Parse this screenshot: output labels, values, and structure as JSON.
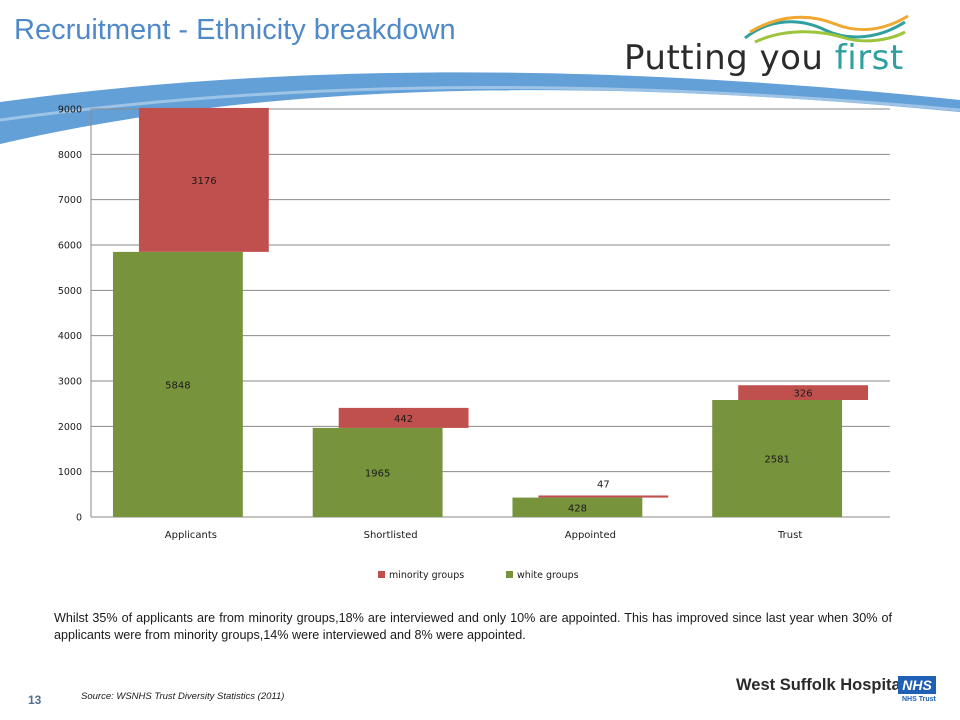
{
  "slide": {
    "title": "Recruitment - Ethnicity breakdown",
    "tagline_main": "Putting you ",
    "tagline_accent": "first",
    "summary": "Whilst 35% of applicants are from minority groups,18% are interviewed and only 10% are appointed. This has improved since last year when 30% of applicants were from minority groups,14% were interviewed and 8% were appointed.",
    "page_number": "13",
    "source": "Source: WSNHS Trust Diversity Statistics (2011)",
    "footer_name": "West Suffolk Hospital",
    "nhs_badge": "NHS",
    "nhs_trust": "NHS Trust"
  },
  "colors": {
    "title": "#4f89c8",
    "swoosh": "#5b9bd5",
    "minority": "#c0504d",
    "white": "#77933c",
    "gridline": "#8a8a8a",
    "tagline_accent": "#2f9fa0",
    "nhs_blue": "#1f5fb5"
  },
  "chart_data": {
    "type": "bar",
    "stacked": true,
    "categories": [
      "Applicants",
      "Shortlisted",
      "Appointed",
      "Trust"
    ],
    "series": [
      {
        "name": "white groups",
        "values": [
          5848,
          1965,
          428,
          2581
        ]
      },
      {
        "name": "minority groups",
        "values": [
          3176,
          442,
          47,
          326
        ]
      }
    ],
    "yticks": [
      0,
      1000,
      2000,
      3000,
      4000,
      5000,
      6000,
      7000,
      8000,
      9000
    ],
    "ylim": [
      0,
      9000
    ],
    "legend": [
      "minority groups",
      "white groups"
    ],
    "legend_position": "bottom",
    "grid": true,
    "title": "",
    "xlabel": "",
    "ylabel": ""
  }
}
